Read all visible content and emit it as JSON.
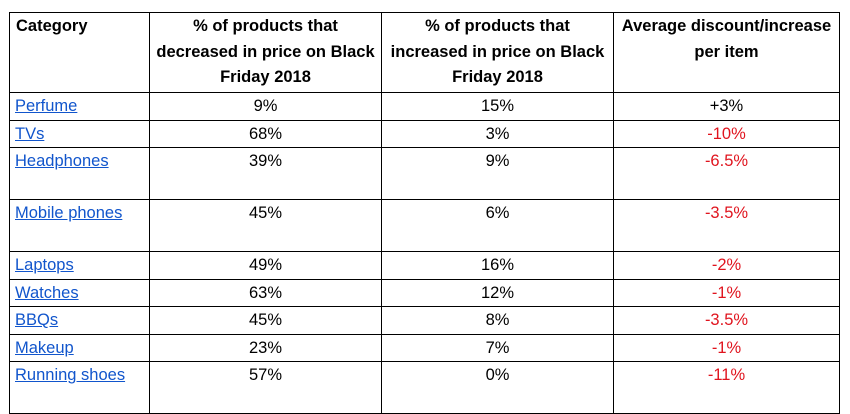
{
  "table": {
    "headers": [
      "Category",
      "% of products that decreased in price on Black Friday 2018",
      "% of products that increased in price on Black Friday 2018",
      "Average discount/increase per item"
    ],
    "rows": [
      {
        "category": "Perfume",
        "decreased": "9%",
        "increased": "15%",
        "avg": "+3%"
      },
      {
        "category": "TVs",
        "decreased": "68%",
        "increased": "3%",
        "avg": "-10%"
      },
      {
        "category": "Headphones",
        "decreased": "39%",
        "increased": "9%",
        "avg": "-6.5%"
      },
      {
        "category": "Mobile phones",
        "decreased": "45%",
        "increased": "6%",
        "avg": "-3.5%"
      },
      {
        "category": "Laptops",
        "decreased": "49%",
        "increased": "16%",
        "avg": "-2%"
      },
      {
        "category": "Watches",
        "decreased": "63%",
        "increased": "12%",
        "avg": "-1%"
      },
      {
        "category": "BBQs",
        "decreased": "45%",
        "increased": "8%",
        "avg": "-3.5%"
      },
      {
        "category": "Makeup",
        "decreased": "23%",
        "increased": "7%",
        "avg": "-1%"
      },
      {
        "category": "Running shoes",
        "decreased": "57%",
        "increased": "0%",
        "avg": "-11%"
      }
    ]
  },
  "colors": {
    "link": "#1155cc",
    "negative": "#e0141e",
    "text": "#000000",
    "border": "#000000"
  }
}
